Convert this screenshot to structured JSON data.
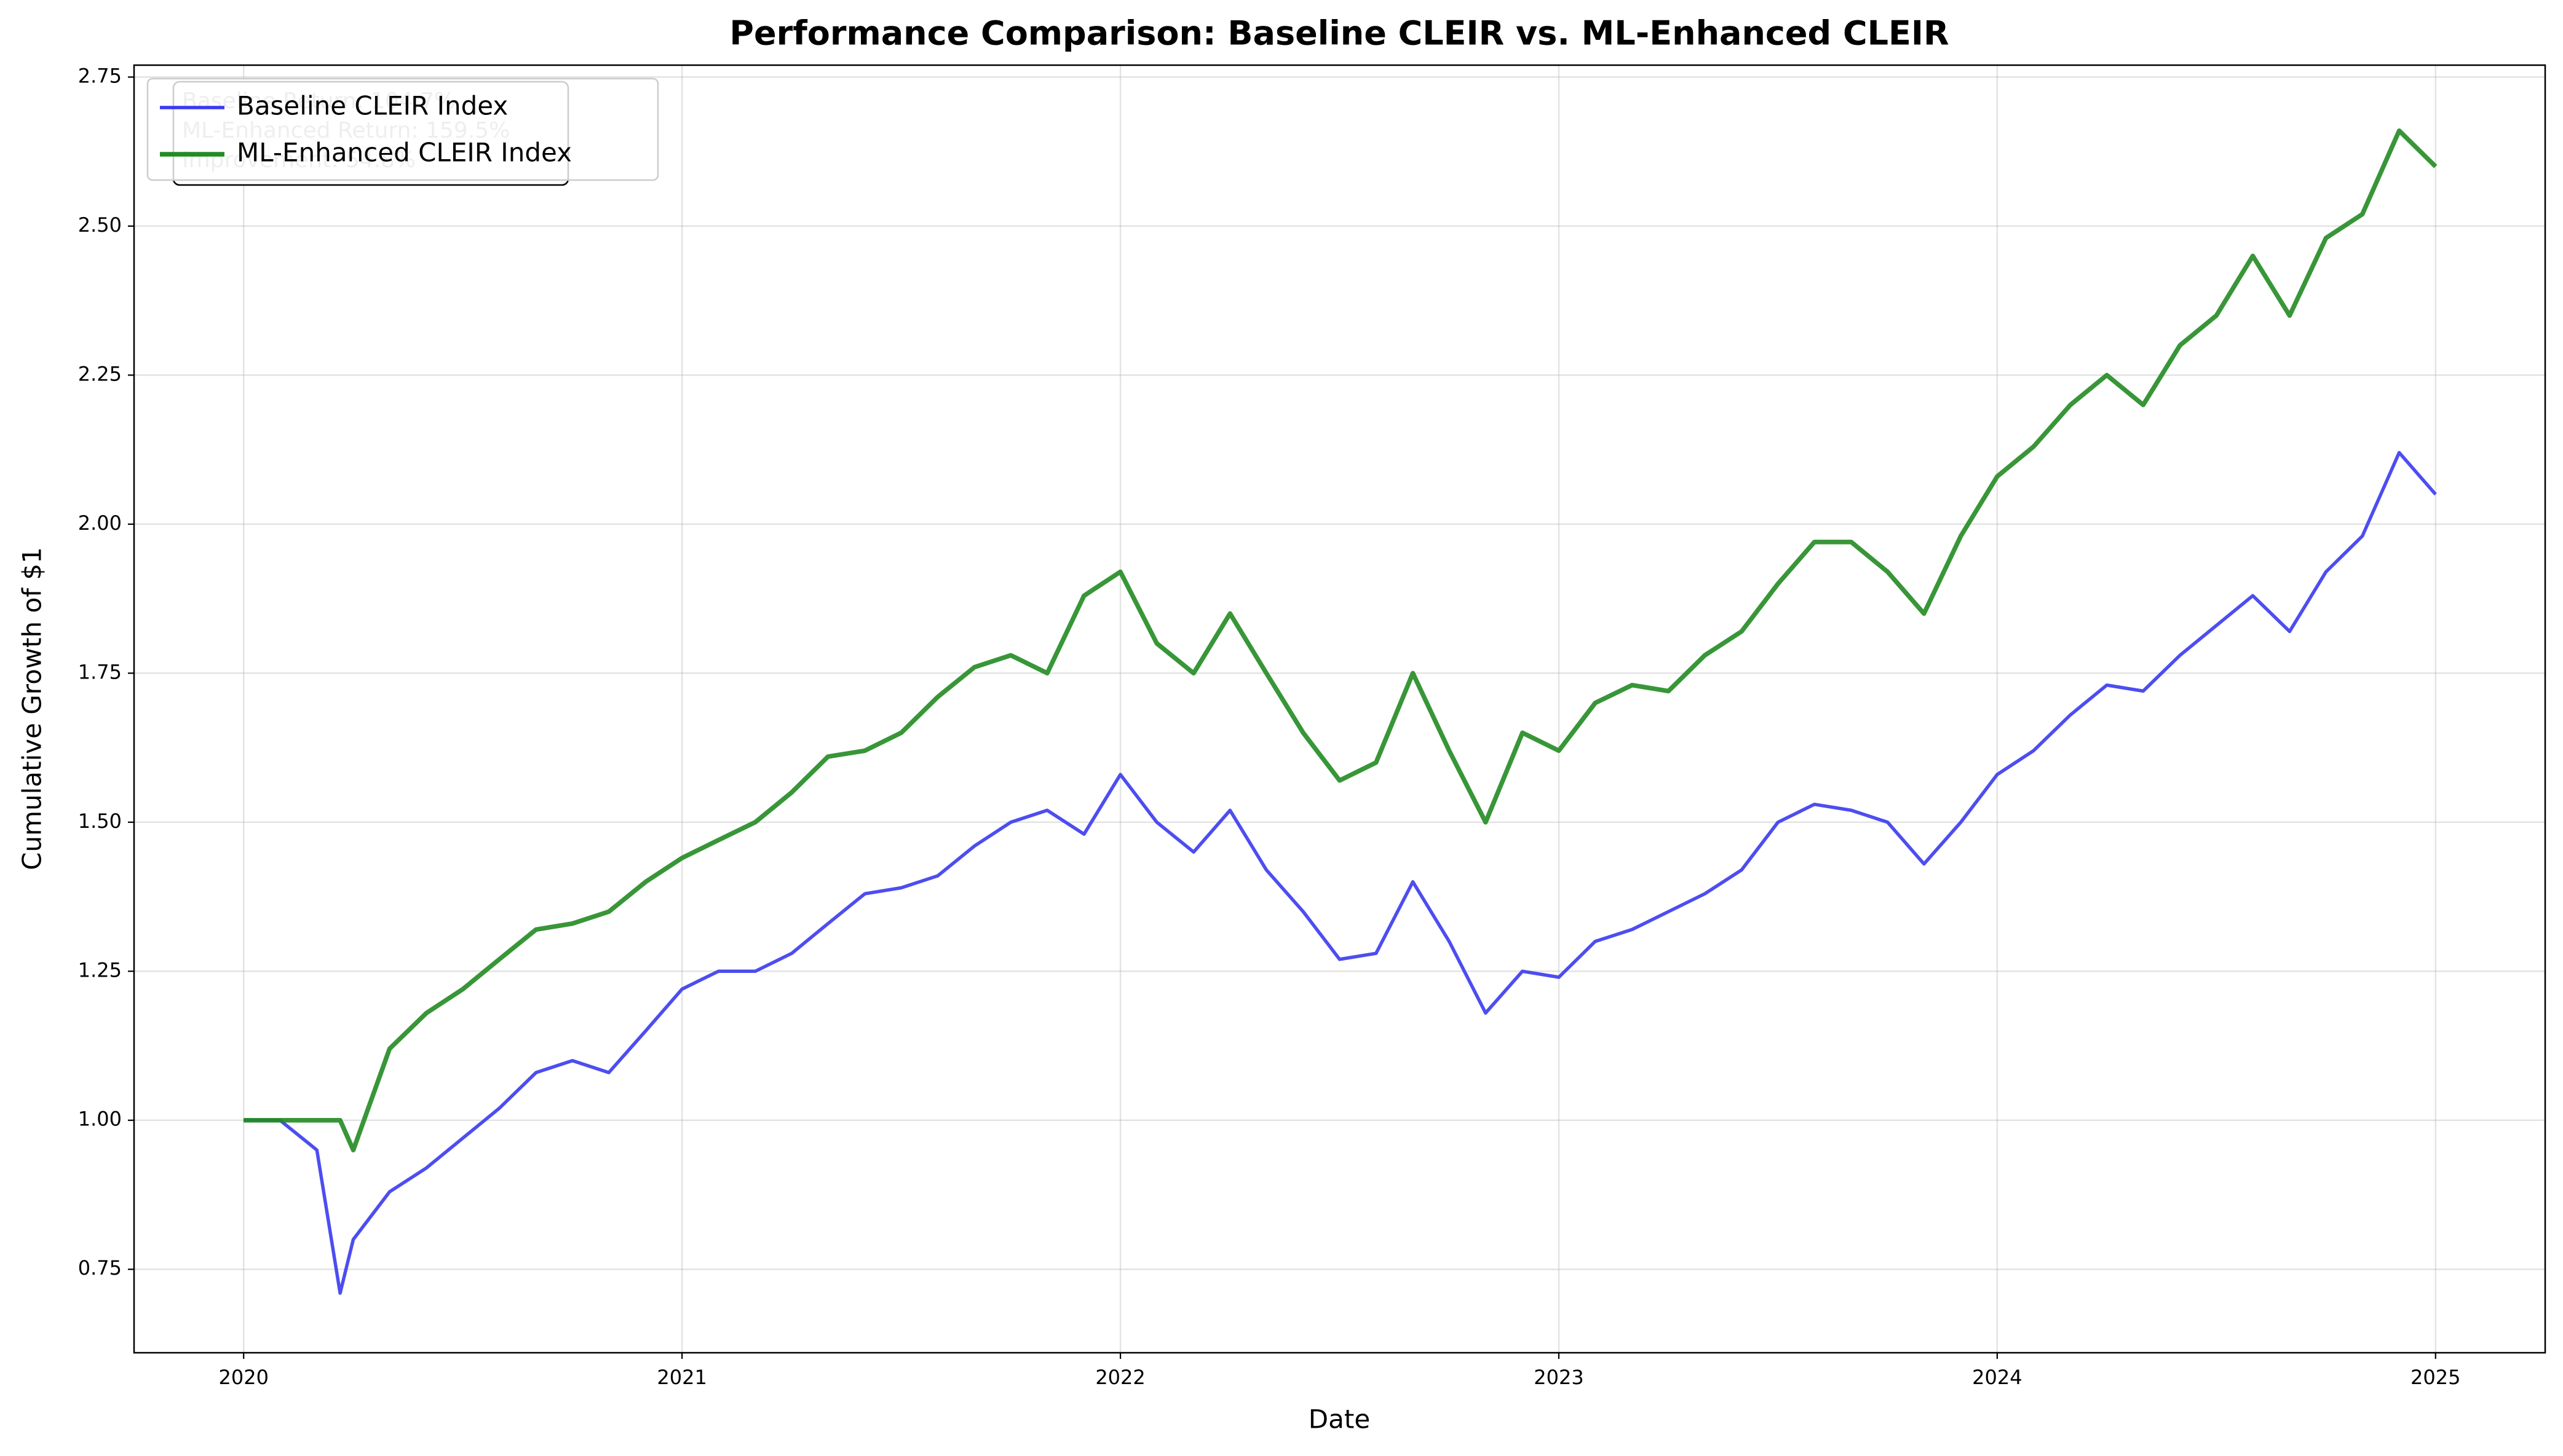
{
  "chart_data": {
    "type": "line",
    "title": "Performance Comparison: Baseline CLEIR vs. ML-Enhanced CLEIR",
    "x_label": "Date",
    "y_label": "Cumulative Growth of $1",
    "annotation": [
      "Baseline Return: 104.7%",
      "ML-Enhanced Return: 159.5%",
      "Improvement: 54.8%"
    ],
    "legend": "upper left",
    "grid": true,
    "xlim": [
      2019.75,
      2025.25
    ],
    "xticks": [
      2020,
      2021,
      2022,
      2023,
      2024,
      2025
    ],
    "ylim": [
      0.61,
      2.77
    ],
    "yticks": [
      0.75,
      {
        "value": 1,
        "label": "1.00"
      },
      1.25,
      {
        "value": 1.5,
        "label": "1.50"
      },
      1.75,
      {
        "value": 2,
        "label": "2.00"
      },
      2.25,
      {
        "value": 2.5,
        "label": "2.50"
      },
      2.75
    ],
    "x": [
      2020,
      2020.083,
      2020.167,
      2020.22,
      2020.25,
      2020.333,
      2020.417,
      2020.5,
      2020.583,
      2020.667,
      2020.75,
      2020.833,
      2020.917,
      2021,
      2021.083,
      2021.167,
      2021.25,
      2021.333,
      2021.417,
      2021.5,
      2021.583,
      2021.667,
      2021.75,
      2021.833,
      2021.917,
      2022,
      2022.083,
      2022.167,
      2022.25,
      2022.333,
      2022.417,
      2022.5,
      2022.583,
      2022.667,
      2022.75,
      2022.833,
      2022.917,
      2023,
      2023.083,
      2023.167,
      2023.25,
      2023.333,
      2023.417,
      2023.5,
      2023.583,
      2023.667,
      2023.75,
      2023.833,
      2023.917,
      2024,
      2024.083,
      2024.167,
      2024.25,
      2024.333,
      2024.417,
      2024.5,
      2024.583,
      2024.667,
      2024.75,
      2024.833,
      2024.917,
      2025
    ],
    "series": [
      {
        "name": "Baseline CLEIR Index",
        "color": "#3a3af0",
        "width": 5.5,
        "values": [
          1.0,
          1.0,
          0.95,
          0.71,
          0.8,
          0.88,
          0.92,
          0.97,
          1.02,
          1.08,
          1.1,
          1.08,
          1.15,
          1.22,
          1.25,
          1.25,
          1.28,
          1.33,
          1.38,
          1.39,
          1.41,
          1.46,
          1.5,
          1.52,
          1.48,
          1.58,
          1.5,
          1.45,
          1.52,
          1.42,
          1.35,
          1.27,
          1.28,
          1.4,
          1.3,
          1.18,
          1.25,
          1.24,
          1.3,
          1.32,
          1.35,
          1.38,
          1.42,
          1.5,
          1.53,
          1.52,
          1.5,
          1.43,
          1.5,
          1.58,
          1.62,
          1.68,
          1.73,
          1.72,
          1.78,
          1.83,
          1.88,
          1.82,
          1.92,
          1.98,
          2.12,
          2.05
        ]
      },
      {
        "name": "ML-Enhanced CLEIR Index",
        "color": "#228b22",
        "width": 7.5,
        "values": [
          1.0,
          1.0,
          1.0,
          1.0,
          0.95,
          1.12,
          1.18,
          1.22,
          1.27,
          1.32,
          1.33,
          1.35,
          1.4,
          1.44,
          1.47,
          1.5,
          1.55,
          1.61,
          1.62,
          1.65,
          1.71,
          1.76,
          1.78,
          1.75,
          1.88,
          1.92,
          1.8,
          1.75,
          1.85,
          1.75,
          1.65,
          1.57,
          1.6,
          1.75,
          1.62,
          1.5,
          1.65,
          1.62,
          1.7,
          1.73,
          1.72,
          1.78,
          1.82,
          1.9,
          1.97,
          1.97,
          1.92,
          1.85,
          1.98,
          2.08,
          2.13,
          2.2,
          2.25,
          2.2,
          2.3,
          2.35,
          2.45,
          2.35,
          2.48,
          2.52,
          2.66,
          2.6
        ]
      }
    ]
  }
}
